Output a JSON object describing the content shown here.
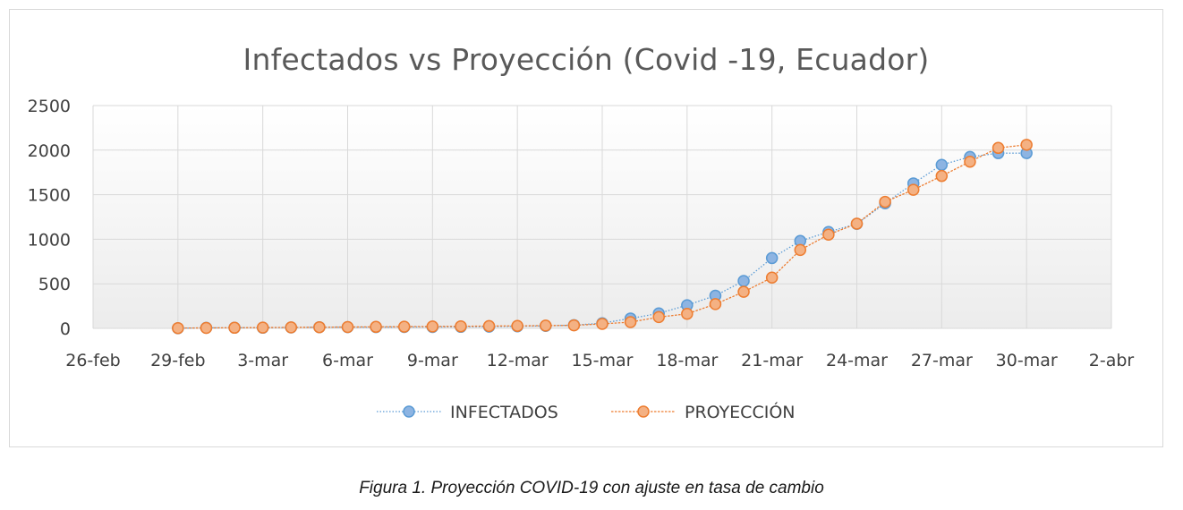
{
  "chart_data": {
    "type": "line",
    "title": "Infectados vs Proyección (Covid -19, Ecuador)",
    "xlabel": "",
    "ylabel": "",
    "x_range": [
      "2020-02-26",
      "2020-04-02"
    ],
    "ylim": [
      0,
      2500
    ],
    "y_ticks": [
      0,
      500,
      1000,
      1500,
      2000,
      2500
    ],
    "x_ticks": [
      {
        "date": "2020-02-26",
        "label": "26-feb"
      },
      {
        "date": "2020-02-29",
        "label": "29-feb"
      },
      {
        "date": "2020-03-03",
        "label": "3-mar"
      },
      {
        "date": "2020-03-06",
        "label": "6-mar"
      },
      {
        "date": "2020-03-09",
        "label": "9-mar"
      },
      {
        "date": "2020-03-12",
        "label": "12-mar"
      },
      {
        "date": "2020-03-15",
        "label": "15-mar"
      },
      {
        "date": "2020-03-18",
        "label": "18-mar"
      },
      {
        "date": "2020-03-21",
        "label": "21-mar"
      },
      {
        "date": "2020-03-24",
        "label": "24-mar"
      },
      {
        "date": "2020-03-27",
        "label": "27-mar"
      },
      {
        "date": "2020-03-30",
        "label": "30-mar"
      },
      {
        "date": "2020-04-02",
        "label": "2-abr"
      }
    ],
    "grid": true,
    "legend_position": "bottom",
    "x": [
      "2020-02-29",
      "2020-03-01",
      "2020-03-02",
      "2020-03-03",
      "2020-03-04",
      "2020-03-05",
      "2020-03-06",
      "2020-03-07",
      "2020-03-08",
      "2020-03-09",
      "2020-03-10",
      "2020-03-11",
      "2020-03-12",
      "2020-03-13",
      "2020-03-14",
      "2020-03-15",
      "2020-03-16",
      "2020-03-17",
      "2020-03-18",
      "2020-03-19",
      "2020-03-20",
      "2020-03-21",
      "2020-03-22",
      "2020-03-23",
      "2020-03-24",
      "2020-03-25",
      "2020-03-26",
      "2020-03-27",
      "2020-03-28",
      "2020-03-29",
      "2020-03-30"
    ],
    "series": [
      {
        "name": "INFECTADOS",
        "color": "#5b9bd5",
        "values": [
          1,
          6,
          7,
          7,
          10,
          13,
          14,
          14,
          15,
          15,
          17,
          19,
          23,
          28,
          37,
          58,
          111,
          168,
          260,
          367,
          532,
          789,
          981,
          1082,
          1173,
          1403,
          1627,
          1835,
          1924,
          1966,
          1966
        ]
      },
      {
        "name": "PROYECCIÓN",
        "color": "#ed7d31",
        "values": [
          3,
          5,
          7,
          9,
          11,
          13,
          15,
          17,
          19,
          21,
          23,
          26,
          28,
          31,
          34,
          50,
          70,
          127,
          163,
          272,
          410,
          570,
          880,
          1052,
          1175,
          1420,
          1555,
          1710,
          1870,
          2025,
          2060
        ]
      }
    ]
  },
  "caption": "Figura 1. Proyección COVID-19 con ajuste en tasa de cambio"
}
